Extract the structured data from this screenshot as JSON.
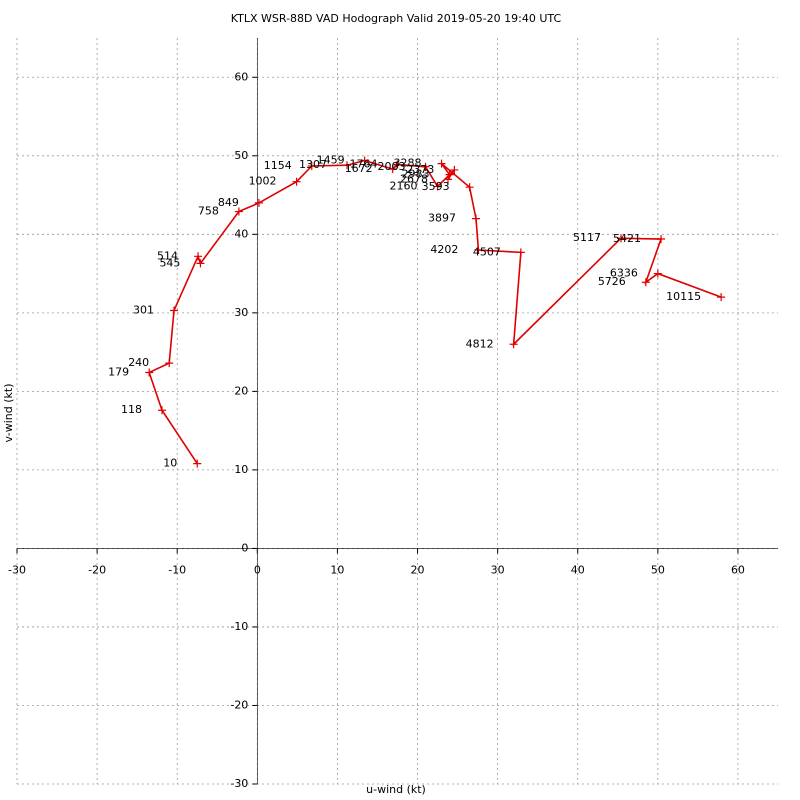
{
  "chart_data": {
    "type": "hodograph",
    "title": "KTLX WSR-88D VAD Hodograph Valid 2019-05-20 19:40 UTC",
    "x_label": "u-wind (kt)",
    "y_label": "v-wind (kt)",
    "xlim": [
      -30,
      65
    ],
    "ylim": [
      -30,
      65
    ],
    "xticks": [
      -30,
      -20,
      -10,
      0,
      10,
      20,
      30,
      40,
      50,
      60
    ],
    "yticks": [
      -30,
      -20,
      -10,
      0,
      10,
      20,
      30,
      40,
      50,
      60
    ],
    "grid": true,
    "series": [
      {
        "color": "#e00000",
        "heights": [
          10,
          118,
          179,
          240,
          301,
          514,
          545,
          758,
          849,
          1002,
          1154,
          1307,
          1459,
          1672,
          1764,
          2003,
          2160,
          2373,
          2678,
          2983,
          3288,
          3593,
          3897,
          4202,
          4507,
          4812,
          5117,
          5421,
          5726,
          6336,
          10115
        ],
        "x": [
          -7.5,
          -11.9,
          -13.5,
          -11.0,
          -10.4,
          -7.4,
          -7.1,
          -2.3,
          0.2,
          4.9,
          6.8,
          11.2,
          13.4,
          16.9,
          17.5,
          21.0,
          22.5,
          24.6,
          23.8,
          24.0,
          23.0,
          26.5,
          27.3,
          27.6,
          32.9,
          32.0,
          45.4,
          50.4,
          48.5,
          50.0,
          57.9
        ],
        "values": [
          10.8,
          17.6,
          22.4,
          23.6,
          30.3,
          37.2,
          36.3,
          42.9,
          44.0,
          46.7,
          48.7,
          48.8,
          49.4,
          48.3,
          48.9,
          48.6,
          46.1,
          48.2,
          47.0,
          47.6,
          49.0,
          46.0,
          42.0,
          38.0,
          37.7,
          26.0,
          39.5,
          39.4,
          33.9,
          35.0,
          32.0
        ]
      }
    ]
  }
}
